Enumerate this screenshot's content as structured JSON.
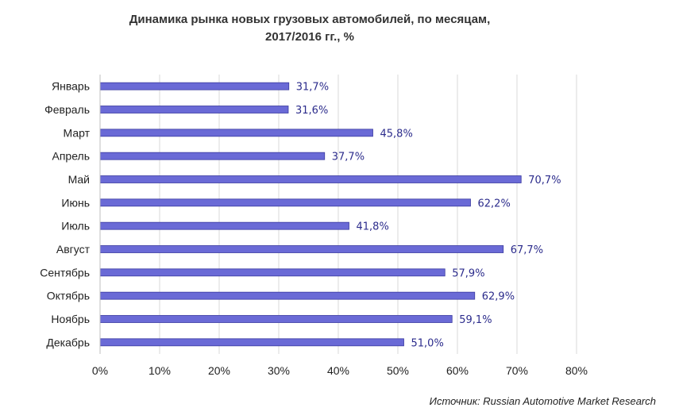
{
  "chart_data": {
    "type": "bar",
    "orientation": "horizontal",
    "title": "Динамика рынка новых грузовых автомобилей, по месяцам,",
    "subtitle": "2017/2016 гг., %",
    "categories": [
      "Январь",
      "Февраль",
      "Март",
      "Апрель",
      "Май",
      "Июнь",
      "Июль",
      "Август",
      "Сентябрь",
      "Октябрь",
      "Ноябрь",
      "Декабрь"
    ],
    "values": [
      31.7,
      31.6,
      45.8,
      37.7,
      70.7,
      62.2,
      41.8,
      67.7,
      57.9,
      62.9,
      59.1,
      51.0
    ],
    "value_labels": [
      "31,7%",
      "31,6%",
      "45,8%",
      "37,7%",
      "70,7%",
      "62,2%",
      "41,8%",
      "67,7%",
      "57,9%",
      "62,9%",
      "59,1%",
      "51,0%"
    ],
    "x_ticks": [
      0,
      10,
      20,
      30,
      40,
      50,
      60,
      70,
      80
    ],
    "x_tick_labels": [
      "0%",
      "10%",
      "20%",
      "30%",
      "40%",
      "50%",
      "60%",
      "70%",
      "80%"
    ],
    "xlim": [
      0,
      80
    ],
    "grid": "vertical",
    "bar_color": "#6a6ad6",
    "value_label_color": "#2c2c8c"
  },
  "source": "Источник: Russian Automotive Market Research"
}
